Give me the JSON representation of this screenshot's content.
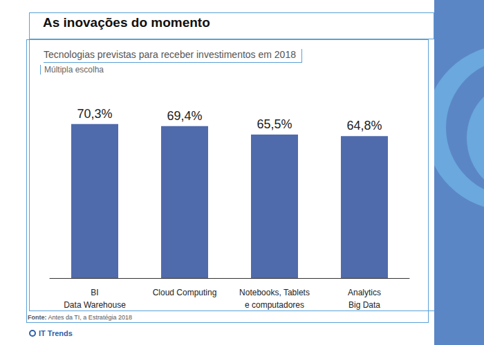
{
  "chart_data": {
    "type": "bar",
    "title": "As inovações do momento",
    "subtitle": "Tecnologias previstas para receber investimentos em 2018",
    "note": "Múltipla escolha",
    "source_label": "Fonte:",
    "source": "Antes da TI, a Estratégia 2018",
    "brand": "IT Trends",
    "categories": [
      "BI\nData Warehouse",
      "Cloud Computing",
      "Notebooks, Tablets\ne computadores",
      "Analytics\nBig Data"
    ],
    "values": [
      70.3,
      69.4,
      65.5,
      64.8
    ],
    "value_labels": [
      "70,3%",
      "69,4%",
      "65,5%",
      "64,8%"
    ],
    "data_labels": true,
    "color": "#506bac",
    "ylim": [
      0,
      80
    ],
    "grid": false,
    "tick_labels": "x"
  }
}
